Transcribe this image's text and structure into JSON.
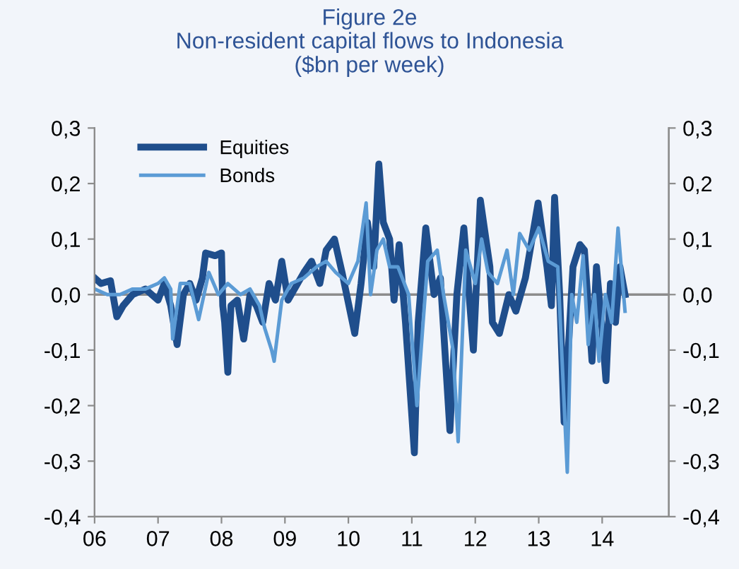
{
  "chart_data": {
    "type": "line",
    "title": "Figure 2e\nNon-resident capital flows to Indonesia\n($bn per week)",
    "series": [
      {
        "name": "Equities",
        "color": "#1f4e8c",
        "x": [
          2006.0,
          2006.1,
          2006.25,
          2006.35,
          2006.45,
          2006.6,
          2006.8,
          2007.0,
          2007.1,
          2007.2,
          2007.3,
          2007.4,
          2007.5,
          2007.6,
          2007.7,
          2007.75,
          2007.9,
          2008.0,
          2008.02,
          2008.05,
          2008.1,
          2008.15,
          2008.25,
          2008.35,
          2008.45,
          2008.55,
          2008.65,
          2008.75,
          2008.85,
          2008.95,
          2009.05,
          2009.15,
          2009.3,
          2009.42,
          2009.55,
          2009.65,
          2009.78,
          2009.9,
          2010.1,
          2010.2,
          2010.3,
          2010.4,
          2010.48,
          2010.55,
          2010.65,
          2010.72,
          2010.8,
          2010.9,
          2011.04,
          2011.1,
          2011.22,
          2011.35,
          2011.45,
          2011.6,
          2011.71,
          2011.82,
          2011.97,
          2012.08,
          2012.23,
          2012.27,
          2012.38,
          2012.53,
          2012.64,
          2012.79,
          2012.99,
          2013.13,
          2013.2,
          2013.25,
          2013.33,
          2013.4,
          2013.54,
          2013.65,
          2013.72,
          2013.84,
          2013.91,
          2013.99,
          2014.06,
          2014.13,
          2014.21,
          2014.28,
          2014.36
        ],
        "values": [
          0.03,
          0.02,
          0.025,
          -0.04,
          -0.02,
          0.0,
          0.01,
          -0.01,
          0.02,
          -0.02,
          -0.09,
          0.0,
          0.02,
          -0.01,
          0.03,
          0.075,
          0.07,
          0.075,
          -0.02,
          -0.05,
          -0.14,
          -0.02,
          -0.01,
          -0.08,
          0.0,
          -0.02,
          -0.05,
          0.02,
          -0.01,
          0.06,
          -0.01,
          0.01,
          0.04,
          0.06,
          0.02,
          0.08,
          0.1,
          0.04,
          -0.07,
          0.02,
          0.13,
          0.05,
          0.235,
          0.13,
          0.1,
          -0.01,
          0.09,
          -0.05,
          -0.285,
          -0.05,
          0.12,
          0.0,
          0.03,
          -0.245,
          0.0,
          0.12,
          -0.1,
          0.17,
          0.05,
          -0.05,
          -0.07,
          0.0,
          -0.03,
          0.03,
          0.165,
          0.05,
          -0.02,
          0.175,
          0.0,
          -0.23,
          0.05,
          0.09,
          0.08,
          -0.12,
          0.05,
          -0.05,
          -0.155,
          0.02,
          -0.05,
          0.05,
          0.0
        ]
      },
      {
        "name": "Bonds",
        "color": "#5b9bd5",
        "x": [
          2006.0,
          2006.2,
          2006.4,
          2006.6,
          2006.8,
          2007.0,
          2007.1,
          2007.2,
          2007.23,
          2007.35,
          2007.5,
          2007.64,
          2007.8,
          2007.95,
          2008.1,
          2008.3,
          2008.45,
          2008.6,
          2008.68,
          2008.79,
          2008.83,
          2008.95,
          2009.1,
          2009.3,
          2009.5,
          2009.65,
          2009.8,
          2010.0,
          2010.15,
          2010.28,
          2010.35,
          2010.45,
          2010.55,
          2010.65,
          2010.78,
          2010.95,
          2011.08,
          2011.25,
          2011.4,
          2011.5,
          2011.65,
          2011.73,
          2011.85,
          2012.0,
          2012.1,
          2012.2,
          2012.35,
          2012.5,
          2012.6,
          2012.7,
          2012.85,
          2013.0,
          2013.15,
          2013.3,
          2013.45,
          2013.52,
          2013.6,
          2013.7,
          2013.78,
          2013.88,
          2013.95,
          2014.05,
          2014.15,
          2014.25,
          2014.3,
          2014.36
        ],
        "values": [
          0.01,
          0.0,
          0.0,
          0.01,
          0.01,
          0.02,
          0.03,
          0.01,
          -0.08,
          0.02,
          0.02,
          -0.045,
          0.04,
          0.0,
          0.02,
          0.0,
          0.01,
          -0.02,
          -0.06,
          -0.1,
          -0.12,
          -0.01,
          0.02,
          0.03,
          0.05,
          0.06,
          0.04,
          0.02,
          0.06,
          0.165,
          0.0,
          0.08,
          0.1,
          0.05,
          0.05,
          0.0,
          -0.2,
          0.06,
          0.08,
          0.0,
          -0.1,
          -0.265,
          0.08,
          0.02,
          0.1,
          0.04,
          0.02,
          0.08,
          0.0,
          0.11,
          0.08,
          0.12,
          0.06,
          0.05,
          -0.32,
          0.0,
          -0.05,
          0.07,
          -0.09,
          0.0,
          -0.12,
          0.0,
          -0.05,
          0.12,
          0.05,
          -0.03
        ]
      }
    ],
    "xlim": [
      2006.0,
      2015.05
    ],
    "xticks": [
      {
        "value": 2006,
        "label": "06"
      },
      {
        "value": 2007,
        "label": "07"
      },
      {
        "value": 2008,
        "label": "08"
      },
      {
        "value": 2009,
        "label": "09"
      },
      {
        "value": 2010,
        "label": "10"
      },
      {
        "value": 2011,
        "label": "11"
      },
      {
        "value": 2012,
        "label": "12"
      },
      {
        "value": 2013,
        "label": "13"
      },
      {
        "value": 2014,
        "label": "14"
      }
    ],
    "ylim": [
      -0.4,
      0.3
    ],
    "yticks": [
      {
        "value": -0.4,
        "label": "-0,4"
      },
      {
        "value": -0.3,
        "label": "-0,3"
      },
      {
        "value": -0.2,
        "label": "-0,2"
      },
      {
        "value": -0.1,
        "label": "-0,1"
      },
      {
        "value": 0.0,
        "label": "0,0"
      },
      {
        "value": 0.1,
        "label": "0,1"
      },
      {
        "value": 0.2,
        "label": "0,2"
      },
      {
        "value": 0.3,
        "label": "0,3"
      }
    ],
    "y2lim": [
      -0.4,
      0.3
    ],
    "y2ticks": [
      {
        "value": -0.4,
        "label": "-0,4"
      },
      {
        "value": -0.3,
        "label": "-0,3"
      },
      {
        "value": -0.2,
        "label": "-0,2"
      },
      {
        "value": -0.1,
        "label": "-0,1"
      },
      {
        "value": 0.0,
        "label": "0,0"
      },
      {
        "value": 0.1,
        "label": "0,1"
      },
      {
        "value": 0.2,
        "label": "0,2"
      },
      {
        "value": 0.3,
        "label": "0,3"
      }
    ],
    "ref_lines": [
      {
        "axis": "y",
        "value": 0,
        "color": "#8c8c8c"
      }
    ],
    "legend": "top left",
    "grid": false,
    "marker": "none",
    "line_style": "solid"
  }
}
